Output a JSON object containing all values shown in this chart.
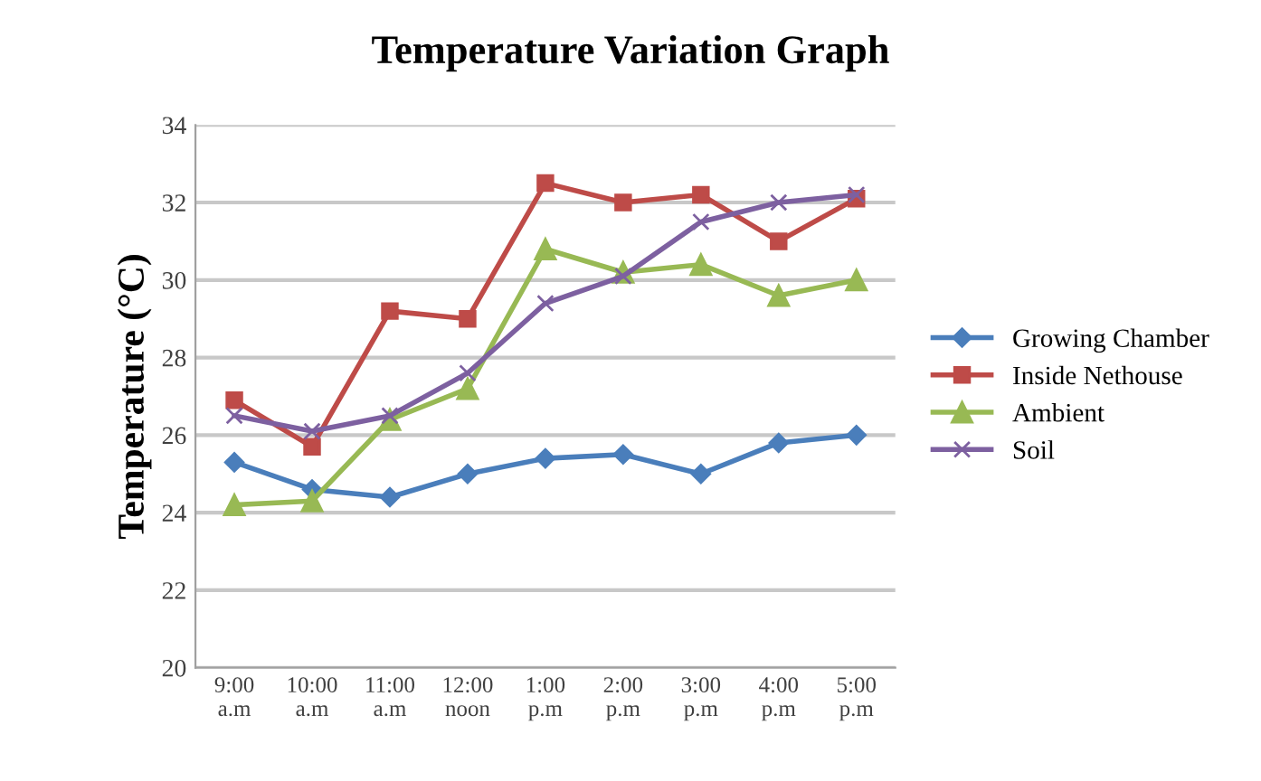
{
  "chart_data": {
    "type": "line",
    "title": "Temperature Variation Graph",
    "ylabel": "Temperature (°C)",
    "categories": [
      "9:00\na.m",
      "10:00\na.m",
      "11:00\na.m",
      "12:00\nnoon",
      "1:00\np.m",
      "2:00\np.m",
      "3:00\np.m",
      "4:00\np.m",
      "5:00\np.m"
    ],
    "series": [
      {
        "name": "Growing Chamber",
        "color": "#4a7ebb",
        "marker": "diamond",
        "values": [
          25.3,
          24.6,
          24.4,
          25.0,
          25.4,
          25.5,
          25.0,
          25.8,
          26.0
        ]
      },
      {
        "name": "Inside Nethouse",
        "color": "#be4b48",
        "marker": "square",
        "values": [
          26.9,
          25.7,
          29.2,
          29.0,
          32.5,
          32.0,
          32.2,
          31.0,
          32.1
        ]
      },
      {
        "name": "Ambient",
        "color": "#98b954",
        "marker": "triangle",
        "values": [
          24.2,
          24.3,
          26.4,
          27.2,
          30.8,
          30.2,
          30.4,
          29.6,
          30.0
        ]
      },
      {
        "name": "Soil",
        "color": "#7d60a0",
        "marker": "cross",
        "values": [
          26.5,
          26.1,
          26.5,
          27.6,
          29.4,
          30.1,
          31.5,
          32.0,
          32.2
        ]
      }
    ],
    "ylim": [
      20,
      34
    ],
    "yticks": [
      20,
      22,
      24,
      26,
      28,
      30,
      32,
      34
    ],
    "grid": "y",
    "legend": "right",
    "line_style": "solid"
  }
}
